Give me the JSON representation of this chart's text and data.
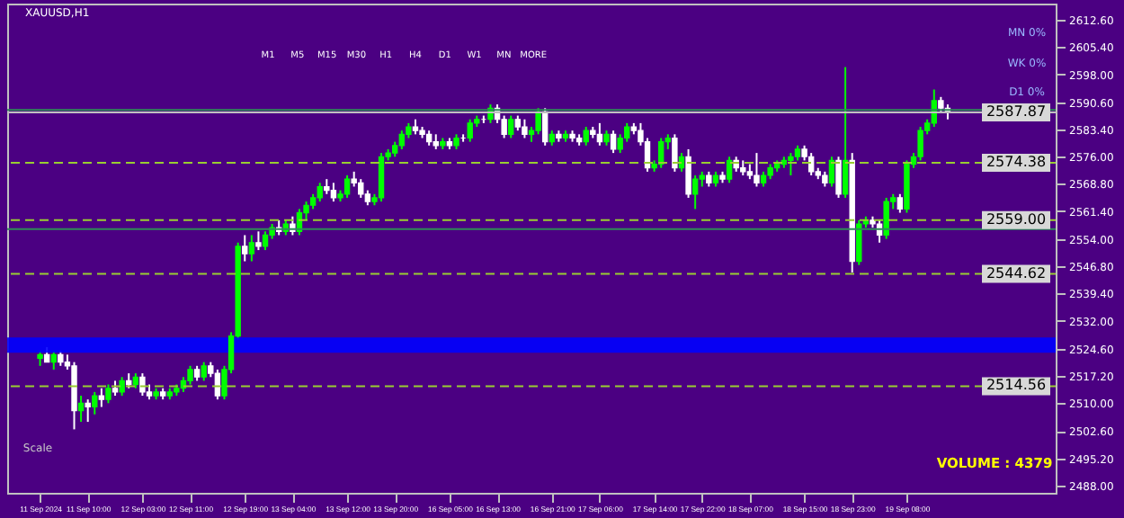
{
  "chart_data": {
    "type": "candlestick",
    "title": "XAUUSD,H1",
    "categories": [
      "11 Sep 2024",
      null,
      null,
      null,
      null,
      null,
      null,
      "11 Sep 10:00",
      null,
      null,
      null,
      null,
      null,
      null,
      null,
      "12 Sep 03:00",
      null,
      null,
      null,
      null,
      null,
      null,
      "12 Sep 11:00",
      null,
      null,
      null,
      null,
      null,
      null,
      null,
      "12 Sep 19:00",
      null,
      null,
      null,
      null,
      null,
      null,
      "13 Sep 04:00",
      null,
      null,
      null,
      null,
      null,
      null,
      null,
      "13 Sep 12:00",
      null,
      null,
      null,
      null,
      null,
      null,
      "13 Sep 20:00",
      null,
      null,
      null,
      null,
      null,
      null,
      null,
      "16 Sep 05:00",
      null,
      null,
      null,
      null,
      null,
      null,
      "16 Sep 13:00",
      null,
      null,
      null,
      null,
      null,
      null,
      null,
      "16 Sep 21:00",
      null,
      null,
      null,
      null,
      null,
      null,
      "17 Sep 06:00",
      null,
      null,
      null,
      null,
      null,
      null,
      null,
      "17 Sep 14:00",
      null,
      null,
      null,
      null,
      null,
      null,
      "17 Sep 22:00",
      null,
      null,
      null,
      null,
      null,
      null,
      "18 Sep 07:00",
      null,
      null,
      null,
      null,
      null,
      null,
      null,
      "18 Sep 15:00",
      null,
      null,
      null,
      null,
      null,
      null,
      "18 Sep 23:00",
      null,
      null,
      null,
      null,
      null,
      null,
      null,
      "19 Sep 08:00",
      null,
      null,
      null,
      null,
      null,
      null,
      null,
      null,
      null,
      null,
      null,
      null,
      null,
      null,
      null,
      null,
      null,
      null,
      null,
      null
    ],
    "ohlc": [
      [
        2522,
        2524,
        2520,
        2523
      ],
      [
        2523,
        2525,
        2521,
        2521
      ],
      [
        2521,
        2524,
        2519,
        2523
      ],
      [
        2523,
        2524,
        2520,
        2521
      ],
      [
        2521,
        2523,
        2519,
        2520
      ],
      [
        2520,
        2521,
        2503,
        2508
      ],
      [
        2508,
        2512,
        2505,
        2510
      ],
      [
        2510,
        2511,
        2505,
        2509
      ],
      [
        2509,
        2513,
        2507,
        2512
      ],
      [
        2512,
        2514,
        2509,
        2511
      ],
      [
        2511,
        2515,
        2510,
        2514
      ],
      [
        2514,
        2516,
        2512,
        2513
      ],
      [
        2513,
        2517,
        2512,
        2516
      ],
      [
        2516,
        2518,
        2514,
        2515
      ],
      [
        2515,
        2518,
        2514,
        2517
      ],
      [
        2517,
        2518,
        2512,
        2513
      ],
      [
        2513,
        2515,
        2511,
        2512
      ],
      [
        2512,
        2514,
        2511,
        2513
      ],
      [
        2513,
        2514,
        2511,
        2512
      ],
      [
        2512,
        2514,
        2511,
        2513
      ],
      [
        2513,
        2515,
        2512,
        2514
      ],
      [
        2514,
        2517,
        2513,
        2516
      ],
      [
        2516,
        2520,
        2515,
        2519
      ],
      [
        2519,
        2520,
        2516,
        2517
      ],
      [
        2517,
        2521,
        2516,
        2520
      ],
      [
        2520,
        2521,
        2517,
        2518
      ],
      [
        2518,
        2519,
        2511,
        2512
      ],
      [
        2512,
        2520,
        2511,
        2519
      ],
      [
        2519,
        2529,
        2518,
        2528
      ],
      [
        2528,
        2553,
        2527,
        2552
      ],
      [
        2552,
        2555,
        2548,
        2550
      ],
      [
        2550,
        2555,
        2548,
        2553
      ],
      [
        2553,
        2556,
        2551,
        2552
      ],
      [
        2552,
        2556,
        2551,
        2555
      ],
      [
        2555,
        2558,
        2554,
        2557
      ],
      [
        2557,
        2559,
        2555,
        2556
      ],
      [
        2556,
        2559,
        2555,
        2558
      ],
      [
        2558,
        2560,
        2555,
        2556
      ],
      [
        2556,
        2562,
        2555,
        2561
      ],
      [
        2561,
        2564,
        2559,
        2563
      ],
      [
        2563,
        2566,
        2562,
        2565
      ],
      [
        2565,
        2569,
        2564,
        2568
      ],
      [
        2568,
        2570,
        2566,
        2567
      ],
      [
        2567,
        2569,
        2564,
        2565
      ],
      [
        2565,
        2567,
        2564,
        2566
      ],
      [
        2566,
        2571,
        2565,
        2570
      ],
      [
        2570,
        2572,
        2568,
        2569
      ],
      [
        2569,
        2570,
        2565,
        2566
      ],
      [
        2566,
        2567,
        2563,
        2564
      ],
      [
        2564,
        2566,
        2563,
        2565
      ],
      [
        2565,
        2577,
        2564,
        2576
      ],
      [
        2576,
        2578,
        2575,
        2577
      ],
      [
        2577,
        2580,
        2576,
        2579
      ],
      [
        2579,
        2583,
        2578,
        2582
      ],
      [
        2582,
        2585,
        2581,
        2584
      ],
      [
        2584,
        2586,
        2582,
        2583
      ],
      [
        2583,
        2584,
        2581,
        2582
      ],
      [
        2582,
        2583,
        2579,
        2580
      ],
      [
        2580,
        2582,
        2578,
        2579
      ],
      [
        2579,
        2581,
        2578,
        2580
      ],
      [
        2580,
        2581,
        2578,
        2579
      ],
      [
        2579,
        2582,
        2578,
        2581
      ],
      [
        2581,
        2582,
        2580,
        2581
      ],
      [
        2581,
        2586,
        2580,
        2585
      ],
      [
        2585,
        2587,
        2584,
        2586
      ],
      [
        2586,
        2587,
        2585,
        2586
      ],
      [
        2586,
        2590,
        2585,
        2589
      ],
      [
        2589,
        2590,
        2585,
        2586
      ],
      [
        2586,
        2587,
        2581,
        2582
      ],
      [
        2582,
        2587,
        2581,
        2586
      ],
      [
        2586,
        2587,
        2583,
        2584
      ],
      [
        2584,
        2586,
        2581,
        2582
      ],
      [
        2582,
        2584,
        2580,
        2583
      ],
      [
        2583,
        2589,
        2582,
        2588
      ],
      [
        2588,
        2589,
        2579,
        2580
      ],
      [
        2580,
        2583,
        2579,
        2582
      ],
      [
        2582,
        2583,
        2580,
        2581
      ],
      [
        2581,
        2583,
        2580,
        2582
      ],
      [
        2582,
        2583,
        2580,
        2581
      ],
      [
        2581,
        2582,
        2579,
        2580
      ],
      [
        2580,
        2584,
        2579,
        2583
      ],
      [
        2583,
        2584,
        2581,
        2582
      ],
      [
        2582,
        2585,
        2579,
        2580
      ],
      [
        2580,
        2583,
        2579,
        2582
      ],
      [
        2582,
        2583,
        2577,
        2578
      ],
      [
        2578,
        2582,
        2577,
        2581
      ],
      [
        2581,
        2585,
        2580,
        2584
      ],
      [
        2584,
        2585,
        2582,
        2583
      ],
      [
        2583,
        2585,
        2579,
        2580
      ],
      [
        2580,
        2581,
        2572,
        2573
      ],
      [
        2573,
        2575,
        2572,
        2574
      ],
      [
        2574,
        2581,
        2573,
        2580
      ],
      [
        2580,
        2582,
        2578,
        2581
      ],
      [
        2581,
        2582,
        2572,
        2573
      ],
      [
        2573,
        2577,
        2572,
        2576
      ],
      [
        2576,
        2578,
        2565,
        2566
      ],
      [
        2566,
        2571,
        2562,
        2570
      ],
      [
        2570,
        2572,
        2568,
        2571
      ],
      [
        2571,
        2572,
        2568,
        2569
      ],
      [
        2569,
        2572,
        2568,
        2571
      ],
      [
        2571,
        2572,
        2569,
        2570
      ],
      [
        2570,
        2576,
        2569,
        2575
      ],
      [
        2575,
        2576,
        2572,
        2573
      ],
      [
        2573,
        2575,
        2571,
        2572
      ],
      [
        2572,
        2574,
        2570,
        2571
      ],
      [
        2571,
        2577,
        2568,
        2569
      ],
      [
        2569,
        2572,
        2568,
        2571
      ],
      [
        2571,
        2574,
        2570,
        2573
      ],
      [
        2573,
        2575,
        2572,
        2574
      ],
      [
        2574,
        2576,
        2573,
        2575
      ],
      [
        2575,
        2577,
        2571,
        2576
      ],
      [
        2576,
        2579,
        2575,
        2578
      ],
      [
        2578,
        2579,
        2575,
        2576
      ],
      [
        2576,
        2577,
        2571,
        2572
      ],
      [
        2572,
        2573,
        2570,
        2571
      ],
      [
        2571,
        2572,
        2568,
        2569
      ],
      [
        2569,
        2576,
        2568,
        2575
      ],
      [
        2575,
        2576,
        2565,
        2566
      ],
      [
        2566,
        2600,
        2565,
        2575
      ],
      [
        2575,
        2577,
        2545,
        2548
      ],
      [
        2548,
        2559,
        2547,
        2558
      ],
      [
        2558,
        2560,
        2557,
        2559
      ],
      [
        2559,
        2560,
        2557,
        2558
      ],
      [
        2558,
        2559,
        2553,
        2555
      ],
      [
        2555,
        2565,
        2554,
        2564
      ],
      [
        2564,
        2566,
        2562,
        2565
      ],
      [
        2565,
        2566,
        2561,
        2562
      ],
      [
        2562,
        2575,
        2561,
        2574
      ],
      [
        2574,
        2577,
        2573,
        2576
      ],
      [
        2576,
        2584,
        2575,
        2583
      ],
      [
        2583,
        2586,
        2582,
        2585
      ],
      [
        2585,
        2594,
        2584,
        2591
      ],
      [
        2591,
        2592,
        2588,
        2589
      ],
      [
        2589,
        2590,
        2586,
        2587.87
      ],
      null,
      null,
      null,
      null,
      null,
      null,
      null,
      null,
      null,
      null,
      null,
      null,
      null,
      null
    ],
    "colors": [
      "#00ff00",
      "#ffffff",
      "#00ff00",
      "#ffffff",
      "#ffffff",
      "#ffffff",
      "#00ff00",
      "#ffffff",
      "#00ff00",
      "#ffffff",
      "#00ff00",
      "#ffffff",
      "#00ff00",
      "#ffffff",
      "#00ff00",
      "#ffffff",
      "#ffffff",
      "#00ff00",
      "#ffffff",
      "#00ff00",
      "#00ff00",
      "#00ff00",
      "#00ff00",
      "#ffffff",
      "#00ff00",
      "#ffffff",
      "#ffffff",
      "#00ff00",
      "#00ff00",
      "#00ff00",
      "#ffffff",
      "#00ff00",
      "#ffffff",
      "#00ff00",
      "#00ff00",
      "#ffffff",
      "#00ff00",
      "#ffffff",
      "#00ff00",
      "#00ff00",
      "#00ff00",
      "#00ff00",
      "#ffffff",
      "#ffffff",
      "#00ff00",
      "#00ff00",
      "#ffffff",
      "#ffffff",
      "#ffffff",
      "#00ff00",
      "#00ff00",
      "#00ff00",
      "#00ff00",
      "#00ff00",
      "#00ff00",
      "#ffffff",
      "#ffffff",
      "#ffffff",
      "#ffffff",
      "#00ff00",
      "#ffffff",
      "#00ff00",
      "#ffffff",
      "#00ff00",
      "#00ff00",
      "#ffffff",
      "#00ff00",
      "#ffffff",
      "#ffffff",
      "#00ff00",
      "#ffffff",
      "#ffffff",
      "#00ff00",
      "#00ff00",
      "#ffffff",
      "#00ff00",
      "#ffffff",
      "#00ff00",
      "#ffffff",
      "#ffffff",
      "#00ff00",
      "#ffffff",
      "#ffffff",
      "#00ff00",
      "#ffffff",
      "#00ff00",
      "#00ff00",
      "#ffffff",
      "#ffffff",
      "#ffffff",
      "#00ff00",
      "#00ff00",
      "#00ff00",
      "#ffffff",
      "#00ff00",
      "#ffffff",
      "#00ff00",
      "#00ff00",
      "#ffffff",
      "#00ff00",
      "#ffffff",
      "#00ff00",
      "#ffffff",
      "#ffffff",
      "#ffffff",
      "#ffffff",
      "#00ff00",
      "#00ff00",
      "#00ff00",
      "#00ff00",
      "#00ff00",
      "#00ff00",
      "#ffffff",
      "#ffffff",
      "#ffffff",
      "#ffffff",
      "#00ff00",
      "#ffffff",
      "#00ff00",
      "#ffffff",
      "#00ff00",
      "#00ff00",
      "#ffffff",
      "#ffffff",
      "#00ff00",
      "#00ff00",
      "#ffffff",
      "#00ff00",
      "#00ff00",
      "#00ff00",
      "#00ff00",
      "#00ff00",
      "#ffffff",
      "#ffffff",
      null,
      null,
      null,
      null,
      null,
      null,
      null,
      null,
      null,
      null,
      null,
      null,
      null,
      null
    ],
    "ylim": [
      2486,
      2617
    ],
    "yticks": [
      {
        "value": 2612.6,
        "label": "2612.60"
      },
      {
        "value": 2605.4,
        "label": "2605.40"
      },
      {
        "value": 2598.0,
        "label": "2598.00"
      },
      {
        "value": 2590.6,
        "label": "2590.60"
      },
      {
        "value": 2583.4,
        "label": "2583.40"
      },
      {
        "value": 2576.0,
        "label": "2576.00"
      },
      {
        "value": 2568.8,
        "label": "2568.80"
      },
      {
        "value": 2561.4,
        "label": "2561.40"
      },
      {
        "value": 2554.0,
        "label": "2554.00"
      },
      {
        "value": 2546.8,
        "label": "2546.80"
      },
      {
        "value": 2539.4,
        "label": "2539.40"
      },
      {
        "value": 2532.0,
        "label": "2532.00"
      },
      {
        "value": 2524.6,
        "label": "2524.60"
      },
      {
        "value": 2517.2,
        "label": "2517.20"
      },
      {
        "value": 2510.0,
        "label": "2510.00"
      },
      {
        "value": 2502.6,
        "label": "2502.60"
      },
      {
        "value": 2495.2,
        "label": "2495.20"
      },
      {
        "value": 2488.0,
        "label": "2488.00"
      }
    ],
    "ref_lines": [
      {
        "axis": "y",
        "value": 2587.87,
        "label": "2587.87",
        "color": "#c0c0c0"
      },
      {
        "axis": "y",
        "value": 2588.5,
        "color": "#2e8b57"
      },
      {
        "axis": "y",
        "value": 2556.6,
        "color": "#2e8b57"
      },
      {
        "axis": "y",
        "value": 2574.38,
        "label": "2574.38",
        "color": "#9acd32",
        "line_style": "dashed"
      },
      {
        "axis": "y",
        "value": 2559.0,
        "label": "2559.00",
        "color": "#9acd32",
        "line_style": "dashed"
      },
      {
        "axis": "y",
        "value": 2544.62,
        "label": "2544.62",
        "color": "#9acd32",
        "line_style": "dashed"
      },
      {
        "axis": "y",
        "value": 2514.56,
        "label": "2514.56",
        "color": "#9acd32",
        "line_style": "dashed"
      }
    ],
    "bands": [
      {
        "axis": "y",
        "from": 2523.5,
        "to": 2527.6,
        "color": "#0000ff"
      }
    ],
    "annotations": [
      "M1",
      "M5",
      "M15",
      "M30",
      "H1",
      "H4",
      "D1",
      "W1",
      "MN",
      "MORE",
      "MN 0%",
      "WK 0%",
      "D1 0%",
      "VOLUME : 4379",
      "Scale"
    ]
  }
}
